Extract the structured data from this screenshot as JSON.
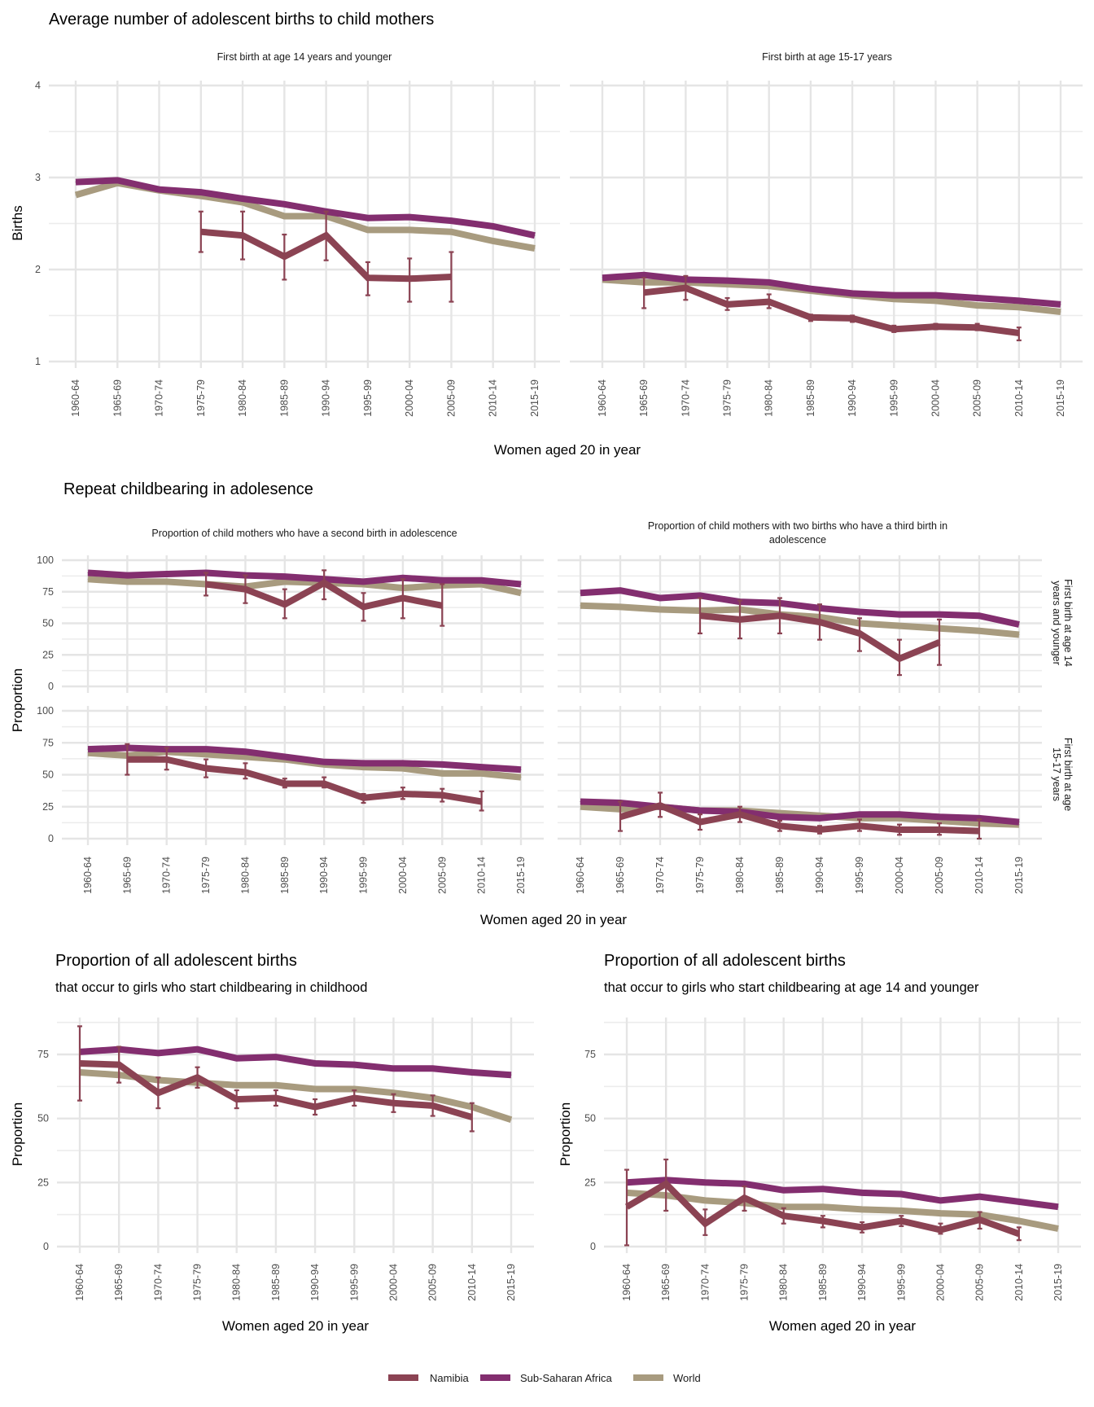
{
  "sections": {
    "top_title": "Average number of adolescent births to child mothers",
    "middle_title": "Repeat childbearing in adolesence",
    "bottom_left_title": "Proportion of all adolescent births",
    "bottom_left_subtitle": "that occur to girls who start childbearing in childhood",
    "bottom_right_title": "Proportion of all adolescent births",
    "bottom_right_subtitle": "that occur to girls who start childbearing at age 14 and younger"
  },
  "legend": {
    "items": [
      {
        "label": "Namibia",
        "color": "#8B4353"
      },
      {
        "label": "Sub-Saharan Africa",
        "color": "#832E6F"
      },
      {
        "label": "World",
        "color": "#A89B7F"
      }
    ]
  },
  "chart_data": [
    {
      "id": "births-14",
      "type": "line",
      "title": "First birth at age 14 years and younger",
      "section": "Average number of adolescent births to child mothers",
      "xlabel": "Women aged 20 in year",
      "ylabel": "Births",
      "ylim": [
        1,
        4
      ],
      "yticks": [
        1,
        2,
        3,
        4
      ],
      "categories": [
        "1960-64",
        "1965-69",
        "1970-74",
        "1975-79",
        "1980-84",
        "1985-89",
        "1990-94",
        "1995-99",
        "2000-04",
        "2005-09",
        "2010-14",
        "2015-19"
      ],
      "series": [
        {
          "name": "Sub-Saharan Africa",
          "values": [
            2.95,
            2.97,
            2.87,
            2.84,
            2.77,
            2.71,
            2.63,
            2.56,
            2.57,
            2.53,
            2.47,
            2.37
          ]
        },
        {
          "name": "World",
          "values": [
            2.81,
            2.94,
            2.86,
            2.8,
            2.73,
            2.58,
            2.58,
            2.43,
            2.43,
            2.41,
            2.31,
            2.23
          ]
        },
        {
          "name": "Namibia",
          "values": [
            null,
            null,
            null,
            2.41,
            2.37,
            2.14,
            2.37,
            1.91,
            1.9,
            1.92,
            null,
            null
          ],
          "err_low": [
            null,
            null,
            null,
            2.19,
            2.11,
            1.89,
            2.1,
            1.72,
            1.65,
            1.65,
            null,
            null
          ],
          "err_high": [
            null,
            null,
            null,
            2.63,
            2.63,
            2.38,
            2.63,
            2.08,
            2.12,
            2.19,
            null,
            null
          ]
        }
      ],
      "grid": true
    },
    {
      "id": "births-15-17",
      "type": "line",
      "title": "First birth at age 15-17 years",
      "section": "Average number of adolescent births to child mothers",
      "xlabel": "Women aged 20 in year",
      "ylabel": "Births",
      "ylim": [
        1,
        4
      ],
      "yticks": [
        1,
        2,
        3,
        4
      ],
      "categories": [
        "1960-64",
        "1965-69",
        "1970-74",
        "1975-79",
        "1980-84",
        "1985-89",
        "1990-94",
        "1995-99",
        "2000-04",
        "2005-09",
        "2010-14",
        "2015-19"
      ],
      "series": [
        {
          "name": "Sub-Saharan Africa",
          "values": [
            1.91,
            1.94,
            1.89,
            1.88,
            1.86,
            1.79,
            1.74,
            1.72,
            1.72,
            1.69,
            1.66,
            1.62
          ]
        },
        {
          "name": "World",
          "values": [
            1.89,
            1.86,
            1.86,
            1.84,
            1.82,
            1.77,
            1.72,
            1.68,
            1.66,
            1.61,
            1.59,
            1.54
          ]
        },
        {
          "name": "Namibia",
          "values": [
            null,
            1.75,
            1.8,
            1.62,
            1.65,
            1.48,
            1.47,
            1.35,
            1.38,
            1.37,
            1.31,
            null
          ],
          "err_low": [
            null,
            1.58,
            1.67,
            1.56,
            1.58,
            1.44,
            1.43,
            1.32,
            1.35,
            1.34,
            1.23,
            null
          ],
          "err_high": [
            null,
            1.91,
            1.93,
            1.69,
            1.73,
            1.51,
            1.5,
            1.39,
            1.41,
            1.41,
            1.37,
            null
          ]
        }
      ],
      "grid": true
    },
    {
      "id": "second-birth-14",
      "type": "line",
      "title": "Proportion of child mothers who have a second birth in adolescence",
      "row_label": "First birth at age 14 years and younger",
      "section": "Repeat childbearing in adolesence",
      "xlabel": "Women aged 20 in year",
      "ylabel": "Proportion",
      "ylim": [
        0,
        100
      ],
      "yticks": [
        0,
        25,
        50,
        75,
        100
      ],
      "categories": [
        "1960-64",
        "1965-69",
        "1970-74",
        "1975-79",
        "1980-84",
        "1985-89",
        "1990-94",
        "1995-99",
        "2000-04",
        "2005-09",
        "2010-14",
        "2015-19"
      ],
      "series": [
        {
          "name": "Sub-Saharan Africa",
          "values": [
            90,
            88,
            89,
            90,
            88,
            87,
            85,
            83,
            86,
            84,
            84,
            81
          ]
        },
        {
          "name": "World",
          "values": [
            85,
            83,
            83,
            81,
            79,
            83,
            82,
            81,
            78,
            80,
            81,
            74
          ]
        },
        {
          "name": "Namibia",
          "values": [
            null,
            null,
            null,
            81,
            77,
            65,
            82,
            63,
            70,
            64,
            null,
            null
          ],
          "err_low": [
            null,
            null,
            null,
            72,
            66,
            54,
            69,
            52,
            54,
            48,
            null,
            null
          ],
          "err_high": [
            null,
            null,
            null,
            90,
            88,
            77,
            92,
            74,
            85,
            81,
            null,
            null
          ]
        }
      ],
      "grid": true
    },
    {
      "id": "third-birth-14",
      "type": "line",
      "title": "Proportion of child mothers with two births who have a third birth in adolescence",
      "row_label": "First birth at age 14 years and younger",
      "section": "Repeat childbearing in adolesence",
      "xlabel": "Women aged 20 in year",
      "ylabel": "Proportion",
      "ylim": [
        0,
        100
      ],
      "yticks": [
        0,
        25,
        50,
        75,
        100
      ],
      "categories": [
        "1960-64",
        "1965-69",
        "1970-74",
        "1975-79",
        "1980-84",
        "1985-89",
        "1990-94",
        "1995-99",
        "2000-04",
        "2005-09",
        "2010-14",
        "2015-19"
      ],
      "series": [
        {
          "name": "Sub-Saharan Africa",
          "values": [
            74,
            76,
            70,
            72,
            67,
            66,
            62,
            59,
            57,
            57,
            56,
            49
          ]
        },
        {
          "name": "World",
          "values": [
            64,
            63,
            61,
            60,
            61,
            57,
            55,
            50,
            48,
            46,
            44,
            41
          ]
        },
        {
          "name": "Namibia",
          "values": [
            null,
            null,
            null,
            56,
            53,
            56,
            51,
            42,
            22,
            35,
            null,
            null
          ],
          "err_low": [
            null,
            null,
            null,
            42,
            38,
            42,
            37,
            28,
            9,
            17,
            null,
            null
          ],
          "err_high": [
            null,
            null,
            null,
            70,
            68,
            70,
            65,
            54,
            37,
            53,
            null,
            null
          ]
        }
      ],
      "grid": true
    },
    {
      "id": "second-birth-15-17",
      "type": "line",
      "title": "Proportion of child mothers who have a second birth in adolescence",
      "row_label": "First birth at age 15-17 years",
      "section": "Repeat childbearing in adolesence",
      "xlabel": "Women aged 20 in year",
      "ylabel": "Proportion",
      "ylim": [
        0,
        100
      ],
      "yticks": [
        0,
        25,
        50,
        75,
        100
      ],
      "categories": [
        "1960-64",
        "1965-69",
        "1970-74",
        "1975-79",
        "1980-84",
        "1985-89",
        "1990-94",
        "1995-99",
        "2000-04",
        "2005-09",
        "2010-14",
        "2015-19"
      ],
      "series": [
        {
          "name": "Sub-Saharan Africa",
          "values": [
            70,
            71,
            70,
            70,
            68,
            64,
            60,
            59,
            59,
            58,
            56,
            54
          ]
        },
        {
          "name": "World",
          "values": [
            67,
            65,
            68,
            66,
            64,
            62,
            58,
            56,
            55,
            51,
            51,
            48
          ]
        },
        {
          "name": "Namibia",
          "values": [
            null,
            62,
            62,
            55,
            52,
            43,
            43,
            32,
            35,
            34,
            29,
            null
          ],
          "err_low": [
            null,
            50,
            54,
            48,
            47,
            40,
            40,
            28,
            31,
            29,
            22,
            null
          ],
          "err_high": [
            null,
            74,
            71,
            62,
            59,
            47,
            48,
            35,
            40,
            39,
            37,
            null
          ]
        }
      ],
      "grid": true
    },
    {
      "id": "third-birth-15-17",
      "type": "line",
      "title": "Proportion of child mothers with two births who have a third birth in adolescence",
      "row_label": "First birth at age 15-17 years",
      "section": "Repeat childbearing in adolesence",
      "xlabel": "Women aged 20 in year",
      "ylabel": "Proportion",
      "ylim": [
        0,
        100
      ],
      "yticks": [
        0,
        25,
        50,
        75,
        100
      ],
      "categories": [
        "1960-64",
        "1965-69",
        "1970-74",
        "1975-79",
        "1980-84",
        "1985-89",
        "1990-94",
        "1995-99",
        "2000-04",
        "2005-09",
        "2010-14",
        "2015-19"
      ],
      "series": [
        {
          "name": "Sub-Saharan Africa",
          "values": [
            29,
            28,
            25,
            22,
            21,
            17,
            16,
            19,
            19,
            17,
            16,
            13
          ]
        },
        {
          "name": "World",
          "values": [
            25,
            23,
            25,
            22,
            22,
            20,
            18,
            16,
            16,
            14,
            12,
            11
          ]
        },
        {
          "name": "Namibia",
          "values": [
            null,
            17,
            26,
            13,
            19,
            10,
            7,
            10,
            7,
            7,
            6,
            null
          ],
          "err_low": [
            null,
            6,
            17,
            7,
            13,
            6,
            4,
            6,
            3,
            3,
            0,
            null
          ],
          "err_high": [
            null,
            29,
            36,
            19,
            25,
            14,
            10,
            15,
            11,
            12,
            15,
            null
          ]
        }
      ],
      "grid": true
    },
    {
      "id": "share-childhood",
      "type": "line",
      "title": "Proportion of all adolescent births",
      "subtitle": "that occur to girls who start childbearing in childhood",
      "xlabel": "Women aged 20 in year",
      "ylabel": "Proportion",
      "ylim": [
        -2,
        92
      ],
      "yticks": [
        0,
        25,
        50,
        75
      ],
      "categories": [
        "1960-64",
        "1965-69",
        "1970-74",
        "1975-79",
        "1980-84",
        "1985-89",
        "1990-94",
        "1995-99",
        "2000-04",
        "2005-09",
        "2010-14",
        "2015-19"
      ],
      "series": [
        {
          "name": "Sub-Saharan Africa",
          "values": [
            76,
            77,
            75.5,
            77,
            73.5,
            74,
            71.5,
            71,
            69.5,
            69.5,
            68,
            67
          ]
        },
        {
          "name": "World",
          "values": [
            68,
            67,
            65,
            64,
            63,
            63,
            61.5,
            61.5,
            60,
            58,
            54.5,
            49.5
          ]
        },
        {
          "name": "Namibia",
          "values": [
            71.5,
            71,
            60,
            66,
            57.5,
            58,
            54.5,
            58,
            56,
            55,
            50.5,
            null
          ],
          "err_low": [
            57,
            64,
            54,
            62,
            54,
            55,
            51.5,
            55,
            52.5,
            51,
            45,
            null
          ],
          "err_high": [
            86,
            78,
            66,
            70,
            61,
            61,
            57.5,
            61,
            59.5,
            59,
            56,
            null
          ]
        }
      ],
      "grid": true
    },
    {
      "id": "share-14",
      "type": "line",
      "title": "Proportion of all adolescent births",
      "subtitle": "that occur to girls who start childbearing at age 14 and younger",
      "xlabel": "Women aged 20 in year",
      "ylabel": "Proportion",
      "ylim": [
        -2,
        92
      ],
      "yticks": [
        0,
        25,
        50,
        75
      ],
      "categories": [
        "1960-64",
        "1965-69",
        "1970-74",
        "1975-79",
        "1980-84",
        "1985-89",
        "1990-94",
        "1995-99",
        "2000-04",
        "2005-09",
        "2010-14",
        "2015-19"
      ],
      "series": [
        {
          "name": "Sub-Saharan Africa",
          "values": [
            25,
            26,
            25,
            24.5,
            22,
            22.5,
            21,
            20.5,
            18,
            19.5,
            17.5,
            15.5
          ]
        },
        {
          "name": "World",
          "values": [
            21,
            20,
            18,
            17,
            15.5,
            15.5,
            14.5,
            14,
            13,
            12.5,
            10,
            7
          ]
        },
        {
          "name": "Namibia",
          "values": [
            15.5,
            24.5,
            9,
            19,
            12,
            10,
            7.5,
            10,
            6.5,
            10.5,
            5,
            null
          ],
          "err_low": [
            0.5,
            14,
            4.5,
            14,
            9,
            7.5,
            5.5,
            8,
            5,
            7,
            2.5,
            null
          ],
          "err_high": [
            30,
            34,
            14.5,
            23.5,
            15,
            12,
            9.5,
            12,
            9,
            13.5,
            7.5,
            null
          ]
        }
      ],
      "grid": true
    }
  ]
}
